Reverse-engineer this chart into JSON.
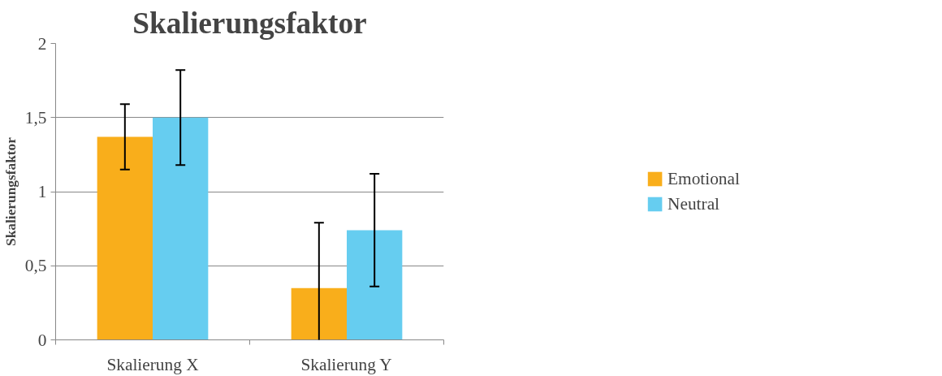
{
  "chart_data": {
    "type": "bar",
    "title": "Skalierungsfaktor",
    "ylabel": "Skalierungsfaktor",
    "categories": [
      "Skalierung X",
      "Skalierung Y"
    ],
    "series": [
      {
        "name": "Emotional",
        "color": "#f9ae1b",
        "values": [
          1.37,
          0.35
        ],
        "errors": [
          0.22,
          0.44
        ]
      },
      {
        "name": "Neutral",
        "color": "#66cdf0",
        "values": [
          1.5,
          0.74
        ],
        "errors": [
          0.32,
          0.38
        ]
      }
    ],
    "ylim": [
      0,
      2
    ],
    "yticks": [
      0,
      {
        "value": 0.5,
        "label": "0,5"
      },
      1,
      {
        "value": 1.5,
        "label": "1,5"
      },
      2
    ],
    "grid": "y",
    "legend": "right"
  }
}
